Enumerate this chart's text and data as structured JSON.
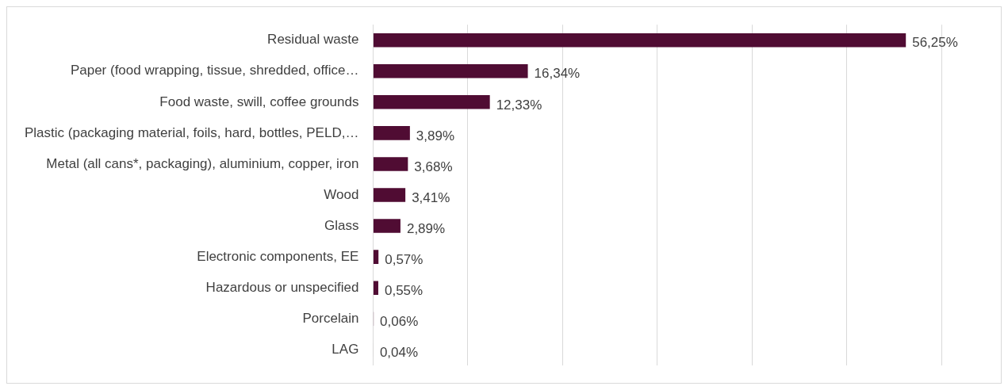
{
  "chart_data": {
    "type": "bar",
    "orientation": "horizontal",
    "categories": [
      "Residual waste",
      "Paper (food wrapping, tissue, shredded, office…",
      "Food waste, swill, coffee grounds",
      "Plastic (packaging material, foils, hard, bottles, PELD,…",
      "Metal (all cans*, packaging), aluminium, copper, iron",
      "Wood",
      "Glass",
      "Electronic components, EE",
      "Hazardous or unspecified",
      "Porcelain",
      "LAG"
    ],
    "values": [
      56.25,
      16.34,
      12.33,
      3.89,
      3.68,
      3.41,
      2.89,
      0.57,
      0.55,
      0.06,
      0.04
    ],
    "value_labels": [
      "56,25%",
      "16,34%",
      "12,33%",
      "3,89%",
      "3,68%",
      "3,41%",
      "2,89%",
      "0,57%",
      "0,55%",
      "0,06%",
      "0,04%"
    ],
    "color": "#500c33",
    "xlim": [
      0,
      60
    ],
    "xticks": [
      {
        "value": 0,
        "label": null
      },
      {
        "value": 10,
        "label": null
      },
      {
        "value": 20,
        "label": null
      },
      {
        "value": 30,
        "label": null
      },
      {
        "value": 40,
        "label": null
      },
      {
        "value": 50,
        "label": null
      },
      {
        "value": 60,
        "label": null
      }
    ],
    "tick_labels": "y",
    "grid": "x",
    "legend": false
  }
}
